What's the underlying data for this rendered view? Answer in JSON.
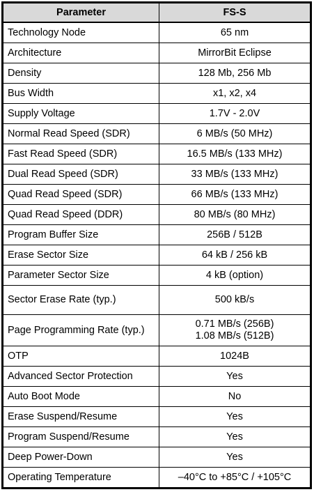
{
  "table": {
    "headers": [
      "Parameter",
      "FS-S"
    ],
    "rows": [
      {
        "param": "Technology Node",
        "value": [
          "65 nm"
        ]
      },
      {
        "param": "Architecture",
        "value": [
          "MirrorBit Eclipse"
        ]
      },
      {
        "param": "Density",
        "value": [
          "128 Mb, 256 Mb"
        ]
      },
      {
        "param": "Bus Width",
        "value": [
          "x1, x2, x4"
        ]
      },
      {
        "param": "Supply Voltage",
        "value": [
          "1.7V - 2.0V"
        ]
      },
      {
        "param": "Normal Read Speed (SDR)",
        "value": [
          "6 MB/s (50 MHz)"
        ]
      },
      {
        "param": "Fast Read Speed (SDR)",
        "value": [
          "16.5 MB/s (133 MHz)"
        ]
      },
      {
        "param": "Dual Read Speed (SDR)",
        "value": [
          "33 MB/s (133 MHz)"
        ]
      },
      {
        "param": "Quad Read Speed (SDR)",
        "value": [
          "66 MB/s (133 MHz)"
        ]
      },
      {
        "param": "Quad Read Speed (DDR)",
        "value": [
          "80 MB/s (80 MHz)"
        ]
      },
      {
        "param": "Program Buffer Size",
        "value": [
          "256B / 512B"
        ]
      },
      {
        "param": "Erase Sector Size",
        "value": [
          "64 kB / 256 kB"
        ]
      },
      {
        "param": "Parameter Sector Size",
        "value": [
          "4 kB (option)"
        ]
      },
      {
        "param": "Sector Erase Rate (typ.)",
        "value": [
          "500 kB/s"
        ]
      },
      {
        "param": "Page Programming Rate (typ.)",
        "value": [
          "0.71 MB/s (256B)",
          "1.08 MB/s (512B)"
        ]
      },
      {
        "param": "OTP",
        "value": [
          "1024B"
        ]
      },
      {
        "param": "Advanced Sector Protection",
        "value": [
          "Yes"
        ]
      },
      {
        "param": "Auto Boot Mode",
        "value": [
          "No"
        ]
      },
      {
        "param": "Erase Suspend/Resume",
        "value": [
          "Yes"
        ]
      },
      {
        "param": "Program Suspend/Resume",
        "value": [
          "Yes"
        ]
      },
      {
        "param": "Deep Power-Down",
        "value": [
          "Yes"
        ]
      },
      {
        "param": "Operating Temperature",
        "value": [
          "–40°C to +85°C / +105°C"
        ]
      }
    ]
  }
}
